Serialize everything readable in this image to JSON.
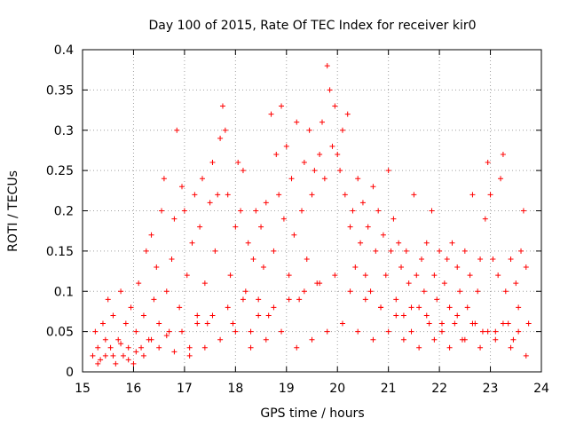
{
  "chart_data": {
    "type": "scatter",
    "title": "Day 100 of 2015, Rate Of TEC Index for receiver kir0",
    "xlabel": "GPS time / hours",
    "ylabel": "ROTI / TECUs",
    "xlim": [
      15,
      24
    ],
    "ylim": [
      0,
      0.4
    ],
    "xticks": [
      "15",
      "16",
      "17",
      "18",
      "19",
      "20",
      "21",
      "22",
      "23",
      "24"
    ],
    "yticks": [
      "0",
      "0.05",
      "0.1",
      "0.15",
      "0.2",
      "0.25",
      "0.3",
      "0.35",
      "0.4"
    ],
    "grid": true,
    "marker": "+",
    "color": "#ff0000",
    "series": [
      {
        "name": "ROTI",
        "points": [
          [
            15.2,
            0.02
          ],
          [
            15.25,
            0.05
          ],
          [
            15.3,
            0.03
          ],
          [
            15.35,
            0.015
          ],
          [
            15.4,
            0.06
          ],
          [
            15.45,
            0.02
          ],
          [
            15.5,
            0.09
          ],
          [
            15.55,
            0.03
          ],
          [
            15.6,
            0.07
          ],
          [
            15.65,
            0.01
          ],
          [
            15.7,
            0.04
          ],
          [
            15.75,
            0.1
          ],
          [
            15.8,
            0.02
          ],
          [
            15.85,
            0.06
          ],
          [
            15.9,
            0.03
          ],
          [
            15.95,
            0.08
          ],
          [
            16.0,
            0.01
          ],
          [
            16.05,
            0.05
          ],
          [
            16.1,
            0.11
          ],
          [
            16.15,
            0.03
          ],
          [
            16.2,
            0.07
          ],
          [
            16.25,
            0.15
          ],
          [
            16.3,
            0.04
          ],
          [
            16.35,
            0.17
          ],
          [
            16.4,
            0.09
          ],
          [
            16.45,
            0.13
          ],
          [
            16.5,
            0.06
          ],
          [
            16.55,
            0.2
          ],
          [
            16.6,
            0.24
          ],
          [
            16.65,
            0.1
          ],
          [
            16.7,
            0.05
          ],
          [
            16.75,
            0.14
          ],
          [
            16.8,
            0.19
          ],
          [
            16.85,
            0.3
          ],
          [
            16.9,
            0.08
          ],
          [
            16.95,
            0.23
          ],
          [
            17.0,
            0.2
          ],
          [
            17.05,
            0.12
          ],
          [
            17.1,
            0.03
          ],
          [
            17.15,
            0.16
          ],
          [
            17.2,
            0.22
          ],
          [
            17.25,
            0.07
          ],
          [
            17.3,
            0.18
          ],
          [
            17.35,
            0.24
          ],
          [
            17.4,
            0.11
          ],
          [
            17.45,
            0.06
          ],
          [
            17.5,
            0.21
          ],
          [
            17.55,
            0.26
          ],
          [
            17.6,
            0.15
          ],
          [
            17.65,
            0.22
          ],
          [
            17.7,
            0.29
          ],
          [
            17.75,
            0.33
          ],
          [
            17.8,
            0.3
          ],
          [
            17.85,
            0.22
          ],
          [
            17.9,
            0.12
          ],
          [
            17.95,
            0.06
          ],
          [
            18.0,
            0.18
          ],
          [
            18.05,
            0.26
          ],
          [
            18.1,
            0.2
          ],
          [
            18.15,
            0.25
          ],
          [
            18.2,
            0.1
          ],
          [
            18.25,
            0.16
          ],
          [
            18.3,
            0.05
          ],
          [
            18.35,
            0.14
          ],
          [
            18.4,
            0.2
          ],
          [
            18.45,
            0.09
          ],
          [
            18.5,
            0.18
          ],
          [
            18.55,
            0.13
          ],
          [
            18.6,
            0.21
          ],
          [
            18.65,
            0.07
          ],
          [
            18.7,
            0.32
          ],
          [
            18.75,
            0.15
          ],
          [
            18.8,
            0.27
          ],
          [
            18.85,
            0.22
          ],
          [
            18.9,
            0.33
          ],
          [
            18.95,
            0.19
          ],
          [
            19.0,
            0.28
          ],
          [
            19.05,
            0.12
          ],
          [
            19.1,
            0.24
          ],
          [
            19.15,
            0.17
          ],
          [
            19.2,
            0.31
          ],
          [
            19.25,
            0.09
          ],
          [
            19.3,
            0.2
          ],
          [
            19.35,
            0.26
          ],
          [
            19.4,
            0.14
          ],
          [
            19.45,
            0.3
          ],
          [
            19.5,
            0.22
          ],
          [
            19.55,
            0.25
          ],
          [
            19.6,
            0.11
          ],
          [
            19.65,
            0.27
          ],
          [
            19.7,
            0.31
          ],
          [
            19.75,
            0.24
          ],
          [
            19.8,
            0.38
          ],
          [
            19.85,
            0.35
          ],
          [
            19.9,
            0.28
          ],
          [
            19.95,
            0.33
          ],
          [
            20.0,
            0.27
          ],
          [
            20.05,
            0.25
          ],
          [
            20.1,
            0.3
          ],
          [
            20.15,
            0.22
          ],
          [
            20.2,
            0.32
          ],
          [
            20.25,
            0.18
          ],
          [
            20.3,
            0.2
          ],
          [
            20.35,
            0.13
          ],
          [
            20.4,
            0.24
          ],
          [
            20.45,
            0.16
          ],
          [
            20.5,
            0.21
          ],
          [
            20.55,
            0.12
          ],
          [
            20.6,
            0.18
          ],
          [
            20.65,
            0.1
          ],
          [
            20.7,
            0.23
          ],
          [
            20.75,
            0.15
          ],
          [
            20.8,
            0.2
          ],
          [
            20.85,
            0.08
          ],
          [
            20.9,
            0.17
          ],
          [
            20.95,
            0.12
          ],
          [
            21.0,
            0.25
          ],
          [
            21.05,
            0.15
          ],
          [
            21.1,
            0.19
          ],
          [
            21.15,
            0.09
          ],
          [
            21.2,
            0.16
          ],
          [
            21.25,
            0.13
          ],
          [
            21.3,
            0.07
          ],
          [
            21.35,
            0.15
          ],
          [
            21.4,
            0.11
          ],
          [
            21.45,
            0.05
          ],
          [
            21.5,
            0.22
          ],
          [
            21.55,
            0.12
          ],
          [
            21.6,
            0.08
          ],
          [
            21.65,
            0.14
          ],
          [
            21.7,
            0.1
          ],
          [
            21.75,
            0.16
          ],
          [
            21.8,
            0.06
          ],
          [
            21.85,
            0.2
          ],
          [
            21.9,
            0.12
          ],
          [
            21.95,
            0.09
          ],
          [
            22.0,
            0.15
          ],
          [
            22.05,
            0.05
          ],
          [
            22.1,
            0.11
          ],
          [
            22.15,
            0.14
          ],
          [
            22.2,
            0.08
          ],
          [
            22.25,
            0.16
          ],
          [
            22.3,
            0.06
          ],
          [
            22.35,
            0.13
          ],
          [
            22.4,
            0.1
          ],
          [
            22.45,
            0.04
          ],
          [
            22.5,
            0.15
          ],
          [
            22.55,
            0.08
          ],
          [
            22.6,
            0.12
          ],
          [
            22.65,
            0.22
          ],
          [
            22.7,
            0.06
          ],
          [
            22.75,
            0.1
          ],
          [
            22.8,
            0.14
          ],
          [
            22.85,
            0.05
          ],
          [
            22.9,
            0.19
          ],
          [
            22.95,
            0.26
          ],
          [
            23.0,
            0.22
          ],
          [
            23.05,
            0.14
          ],
          [
            23.1,
            0.05
          ],
          [
            23.15,
            0.12
          ],
          [
            23.2,
            0.24
          ],
          [
            23.25,
            0.27
          ],
          [
            23.3,
            0.1
          ],
          [
            23.35,
            0.06
          ],
          [
            23.4,
            0.14
          ],
          [
            23.45,
            0.04
          ],
          [
            23.5,
            0.11
          ],
          [
            23.55,
            0.08
          ],
          [
            23.6,
            0.15
          ],
          [
            23.65,
            0.2
          ],
          [
            23.7,
            0.13
          ],
          [
            23.75,
            0.06
          ],
          [
            15.3,
            0.01
          ],
          [
            15.6,
            0.02
          ],
          [
            15.9,
            0.015
          ],
          [
            16.2,
            0.02
          ],
          [
            16.5,
            0.03
          ],
          [
            16.8,
            0.025
          ],
          [
            17.1,
            0.02
          ],
          [
            17.4,
            0.03
          ],
          [
            17.7,
            0.04
          ],
          [
            18.0,
            0.05
          ],
          [
            18.3,
            0.03
          ],
          [
            18.6,
            0.04
          ],
          [
            18.9,
            0.05
          ],
          [
            19.2,
            0.03
          ],
          [
            19.5,
            0.04
          ],
          [
            19.8,
            0.05
          ],
          [
            20.1,
            0.06
          ],
          [
            20.4,
            0.05
          ],
          [
            20.7,
            0.04
          ],
          [
            21.0,
            0.05
          ],
          [
            21.3,
            0.04
          ],
          [
            21.6,
            0.03
          ],
          [
            21.9,
            0.04
          ],
          [
            22.2,
            0.03
          ],
          [
            22.5,
            0.04
          ],
          [
            22.8,
            0.03
          ],
          [
            23.1,
            0.04
          ],
          [
            23.4,
            0.03
          ],
          [
            23.7,
            0.02
          ],
          [
            15.45,
            0.04
          ],
          [
            15.75,
            0.035
          ],
          [
            16.05,
            0.025
          ],
          [
            16.35,
            0.04
          ],
          [
            16.65,
            0.045
          ],
          [
            16.95,
            0.05
          ],
          [
            17.25,
            0.06
          ],
          [
            17.55,
            0.07
          ],
          [
            17.85,
            0.08
          ],
          [
            18.15,
            0.09
          ],
          [
            18.45,
            0.07
          ],
          [
            18.75,
            0.08
          ],
          [
            19.05,
            0.09
          ],
          [
            19.35,
            0.1
          ],
          [
            19.65,
            0.11
          ],
          [
            19.95,
            0.12
          ],
          [
            20.25,
            0.1
          ],
          [
            20.55,
            0.09
          ],
          [
            20.85,
            0.08
          ],
          [
            21.15,
            0.07
          ],
          [
            21.45,
            0.08
          ],
          [
            21.75,
            0.07
          ],
          [
            22.05,
            0.06
          ],
          [
            22.35,
            0.07
          ],
          [
            22.65,
            0.06
          ],
          [
            22.95,
            0.05
          ],
          [
            23.25,
            0.06
          ],
          [
            23.55,
            0.05
          ]
        ]
      }
    ]
  }
}
